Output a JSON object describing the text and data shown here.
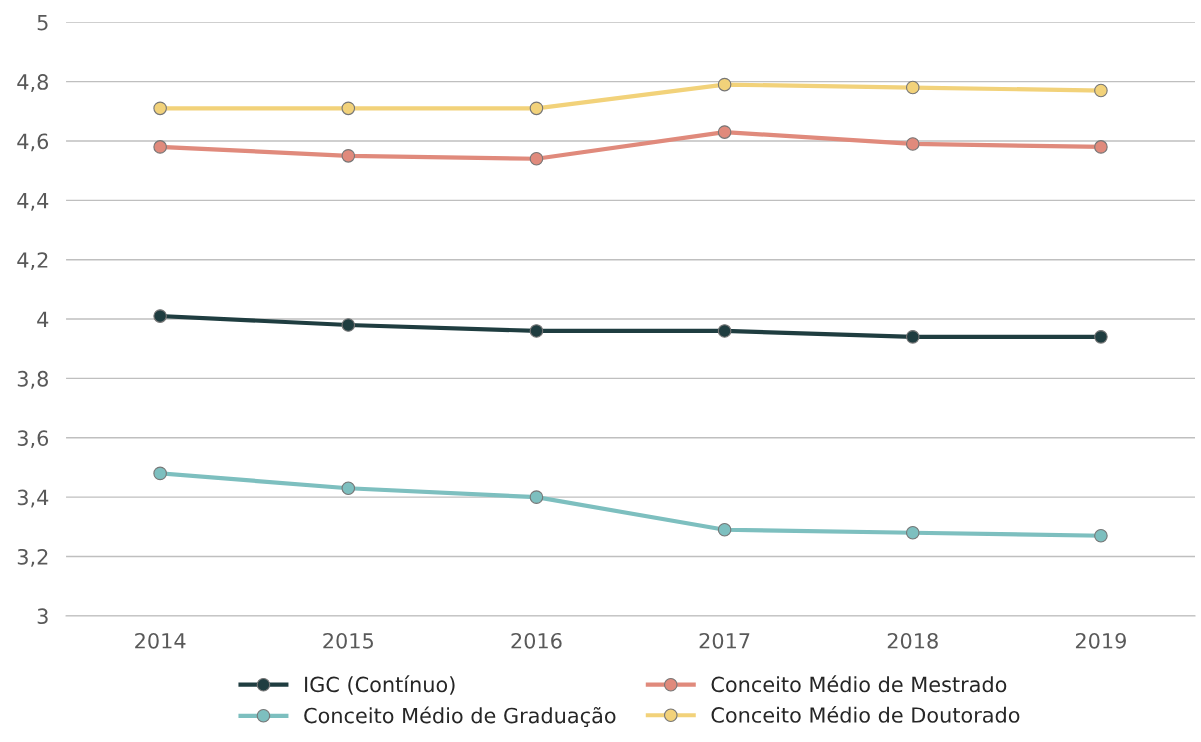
{
  "chart_data": {
    "type": "line",
    "categories": [
      "2014",
      "2015",
      "2016",
      "2017",
      "2018",
      "2019"
    ],
    "ylim": [
      3,
      5
    ],
    "yticks": [
      {
        "value": 3,
        "label": "3"
      },
      {
        "value": 3.2,
        "label": "3,2"
      },
      {
        "value": 3.4,
        "label": "3,4"
      },
      {
        "value": 3.6,
        "label": "3,6"
      },
      {
        "value": 3.8,
        "label": "3,8"
      },
      {
        "value": 4,
        "label": "4"
      },
      {
        "value": 4.2,
        "label": "4,2"
      },
      {
        "value": 4.4,
        "label": "4,4"
      },
      {
        "value": 4.6,
        "label": "4,6"
      },
      {
        "value": 4.8,
        "label": "4,8"
      },
      {
        "value": 5,
        "label": "5"
      }
    ],
    "grid": "y",
    "legend": "bottom",
    "marker": "circle",
    "line_style": "solid",
    "series": [
      {
        "name": "IGC (Contínuo)",
        "color": "#1f3d40",
        "values": [
          4.01,
          3.98,
          3.96,
          3.96,
          3.94,
          3.94
        ]
      },
      {
        "name": "Conceito Médio de Graduação",
        "color": "#7dbfbf",
        "values": [
          3.48,
          3.43,
          3.4,
          3.29,
          3.28,
          3.27
        ]
      },
      {
        "name": "Conceito Médio de Mestrado",
        "color": "#e08a7c",
        "values": [
          4.58,
          4.55,
          4.54,
          4.63,
          4.59,
          4.58
        ]
      },
      {
        "name": "Conceito Médio de Doutorado",
        "color": "#f2d27a",
        "values": [
          4.71,
          4.71,
          4.71,
          4.79,
          4.78,
          4.77
        ]
      }
    ]
  }
}
